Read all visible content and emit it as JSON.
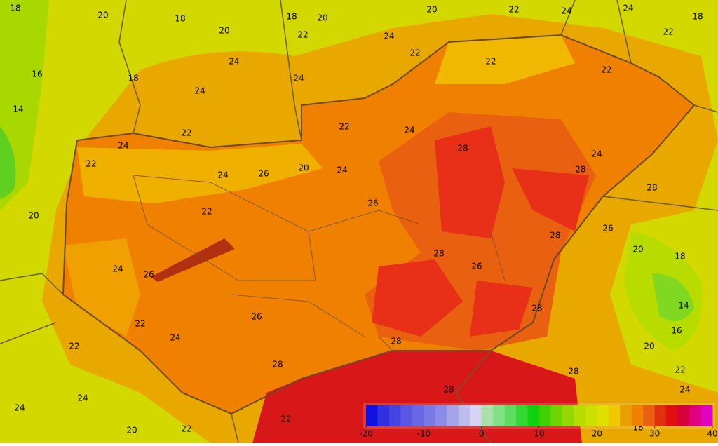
{
  "map": {
    "contour_labels": [
      18,
      20,
      18,
      20,
      18,
      20,
      20,
      22,
      24,
      24,
      18,
      22,
      22,
      24,
      22,
      24,
      22,
      18,
      16,
      24,
      24,
      22,
      14,
      22,
      24,
      20,
      24,
      26,
      22,
      24,
      22,
      20,
      22,
      24,
      28,
      28,
      26,
      28,
      28,
      26,
      26,
      24,
      24,
      26,
      28,
      28,
      28,
      22,
      20,
      18,
      14,
      16,
      20,
      22,
      24,
      24,
      26,
      28,
      28,
      28,
      22,
      20,
      24,
      24,
      22,
      18,
      22
    ],
    "colorbar": {
      "colors": [
        "#1010e0",
        "#3030e0",
        "#4444e0",
        "#5858e4",
        "#6868e4",
        "#7878e6",
        "#8c8ce8",
        "#a4a4ea",
        "#bcbcee",
        "#d4d4f2",
        "#a8e0a8",
        "#84e084",
        "#60dc60",
        "#34d834",
        "#10d010",
        "#40d000",
        "#70d400",
        "#94d800",
        "#b4dc00",
        "#cce000",
        "#e0e000",
        "#f0c800",
        "#e8a000",
        "#f08000",
        "#e86010",
        "#e03010",
        "#e01010",
        "#d8003c",
        "#e00080",
        "#e000c0"
      ],
      "ticks": [
        -20,
        -10,
        0,
        10,
        20,
        30,
        40
      ]
    }
  }
}
